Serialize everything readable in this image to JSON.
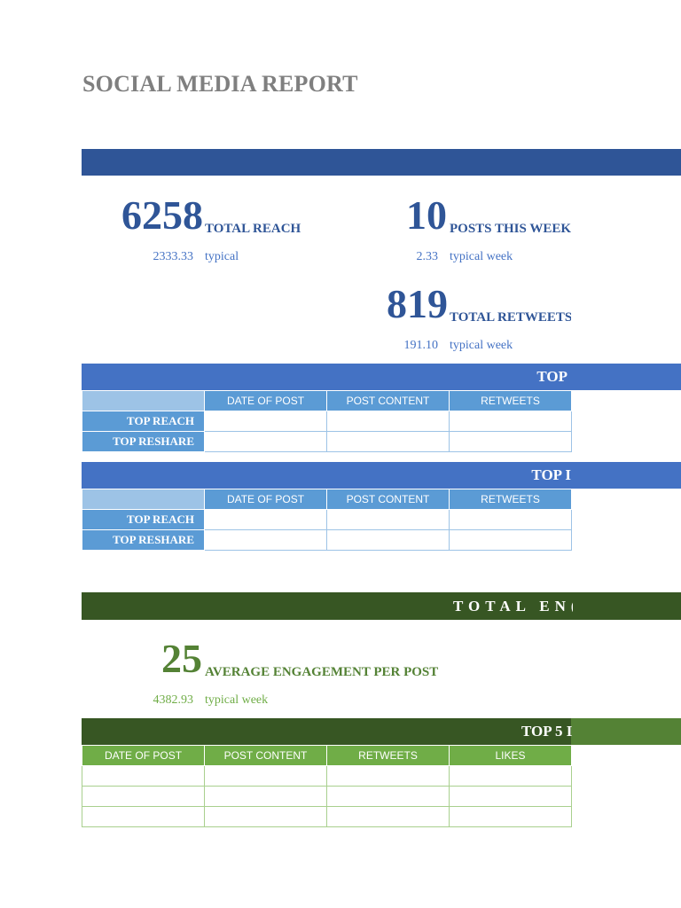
{
  "report": {
    "title": "SOCIAL MEDIA REPORT"
  },
  "colors": {
    "blue_dark": "#2f5597",
    "blue": "#4472c4",
    "blue_light": "#5b9bd5",
    "green_dark": "#375623",
    "green": "#548235",
    "green_light": "#70ad47"
  },
  "reach_section": {
    "total_reach": {
      "value": "6258",
      "label": "TOTAL REACH",
      "typical_value": "2333.33",
      "typical_label": "typical"
    },
    "posts_this_week": {
      "value": "10",
      "label": "POSTS THIS WEEK",
      "typical_value": "2.33",
      "typical_label": "typical week"
    },
    "total_retweets": {
      "value": "819",
      "label": "TOTAL RETWEETS",
      "typical_value": "191.10",
      "typical_label": "typical week"
    }
  },
  "table1": {
    "title": "TOP",
    "columns": [
      "DATE OF POST",
      "POST CONTENT",
      "RETWEETS"
    ],
    "rows": [
      "TOP REACH",
      "TOP RESHARE"
    ]
  },
  "table2": {
    "title": "TOP I",
    "columns": [
      "DATE OF POST",
      "POST CONTENT",
      "RETWEETS"
    ],
    "rows": [
      "TOP REACH",
      "TOP RESHARE"
    ]
  },
  "engagement_section": {
    "title": "TOTAL EN(",
    "average": {
      "value": "25",
      "label": "AVERAGE ENGAGEMENT PER POST",
      "typical_value": "4382.93",
      "typical_label": "typical week"
    }
  },
  "table3": {
    "title": "TOP 5 I",
    "columns": [
      "DATE OF POST",
      "POST CONTENT",
      "RETWEETS",
      "LIKES"
    ]
  }
}
